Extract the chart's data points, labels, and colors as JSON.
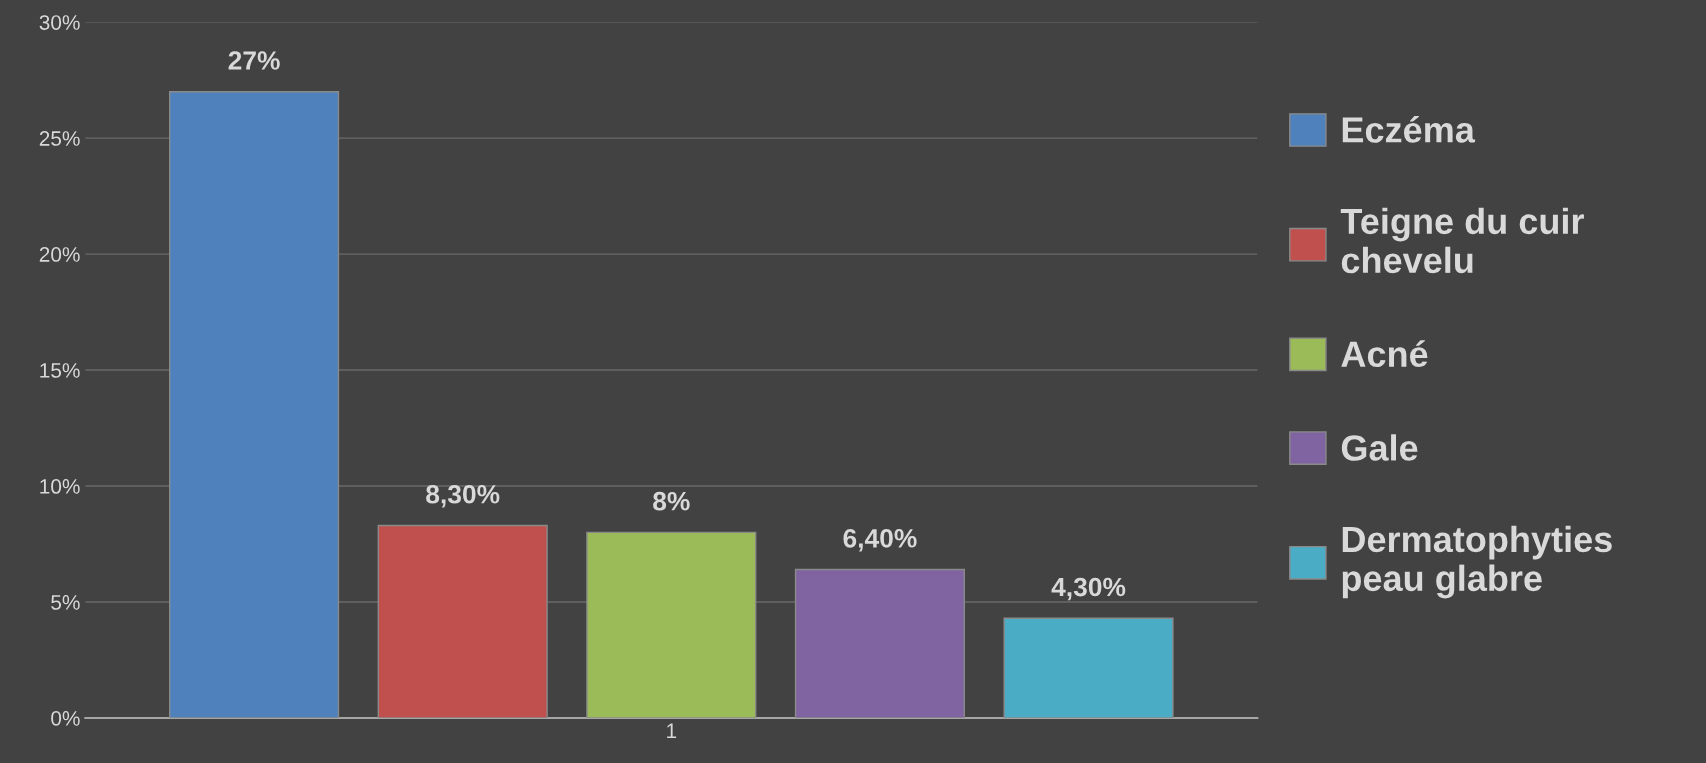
{
  "chart_data": {
    "type": "bar",
    "categories": [
      "1"
    ],
    "series": [
      {
        "name": "Eczéma",
        "color": "#4f81bd",
        "values": [
          27
        ],
        "value_labels": [
          "27%"
        ]
      },
      {
        "name": "Teigne du cuir chevelu",
        "color": "#c0504d",
        "values": [
          8.3
        ],
        "value_labels": [
          "8,30%"
        ]
      },
      {
        "name": "Acné",
        "color": "#9bbb59",
        "values": [
          8
        ],
        "value_labels": [
          "8%"
        ]
      },
      {
        "name": "Gale",
        "color": "#8064a2",
        "values": [
          6.4
        ],
        "value_labels": [
          "6,40%"
        ]
      },
      {
        "name": "Dermatophyties peau glabre",
        "color": "#4bacc6",
        "values": [
          4.3
        ],
        "value_labels": [
          "4,30%"
        ]
      }
    ],
    "ylim": [
      0,
      30
    ],
    "yticks": [
      {
        "value": 0,
        "label": "0%"
      },
      {
        "value": 5,
        "label": "5%"
      },
      {
        "value": 10,
        "label": "10%"
      },
      {
        "value": 15,
        "label": "15%"
      },
      {
        "value": 20,
        "label": "20%"
      },
      {
        "value": 25,
        "label": "25%"
      },
      {
        "value": 30,
        "label": "30%"
      }
    ],
    "grid": "y",
    "legend": "right"
  }
}
